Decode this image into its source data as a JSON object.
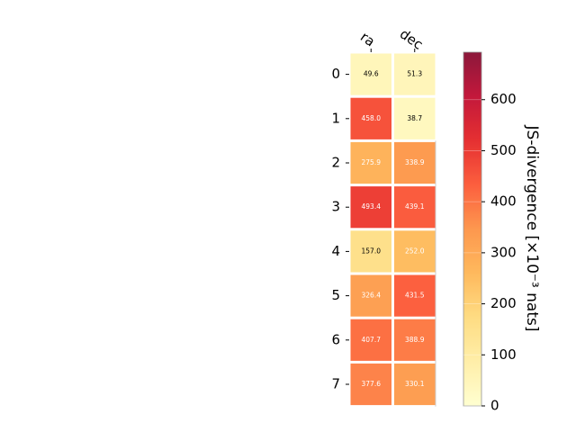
{
  "chart_data": {
    "type": "heatmap",
    "x_labels": [
      "ra",
      "dec"
    ],
    "y_labels": [
      "0",
      "1",
      "2",
      "3",
      "4",
      "5",
      "6",
      "7"
    ],
    "values": [
      [
        49.6,
        51.3
      ],
      [
        458.0,
        38.7
      ],
      [
        275.9,
        338.9
      ],
      [
        493.4,
        439.1
      ],
      [
        157.0,
        252.0
      ],
      [
        326.4,
        431.5
      ],
      [
        407.7,
        388.9
      ],
      [
        377.6,
        330.1
      ]
    ],
    "cell_labels": [
      [
        "49.6",
        "51.3"
      ],
      [
        "458.0",
        "38.7"
      ],
      [
        "275.9",
        "338.9"
      ],
      [
        "493.4",
        "439.1"
      ],
      [
        "157.0",
        "252.0"
      ],
      [
        "326.4",
        "431.5"
      ],
      [
        "407.7",
        "388.9"
      ],
      [
        "377.6",
        "330.1"
      ]
    ],
    "colorbar": {
      "label": "JS-divergence [×10⁻³ nats]",
      "range": [
        0,
        693
      ],
      "ticks": [
        0,
        100,
        200,
        300,
        400,
        500,
        600
      ],
      "tick_labels": [
        "0",
        "100",
        "200",
        "300",
        "400",
        "500",
        "600"
      ],
      "colormap": "YlOrRd"
    },
    "grid": false
  }
}
